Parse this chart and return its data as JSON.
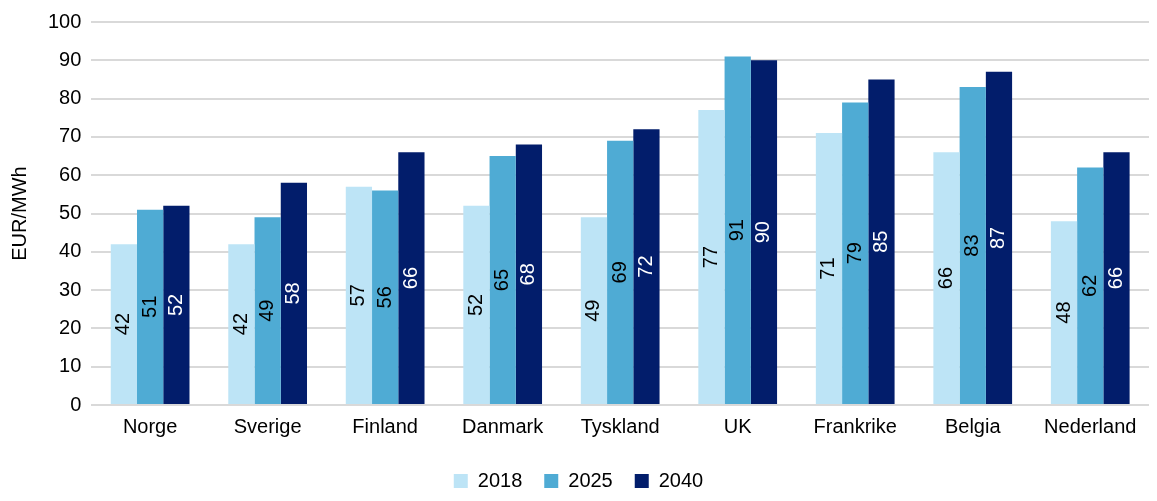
{
  "chart_data": {
    "type": "bar",
    "ylabel": "EUR/MWh",
    "categories": [
      "Norge",
      "Sverige",
      "Finland",
      "Danmark",
      "Tyskland",
      "UK",
      "Frankrike",
      "Belgia",
      "Nederland"
    ],
    "series": [
      {
        "name": "2018",
        "color": "#bde4f6",
        "values": [
          42,
          42,
          57,
          52,
          49,
          77,
          71,
          66,
          48
        ]
      },
      {
        "name": "2025",
        "color": "#4fabd4",
        "values": [
          51,
          49,
          56,
          65,
          69,
          91,
          79,
          83,
          62
        ]
      },
      {
        "name": "2040",
        "color": "#021d6b",
        "values": [
          52,
          58,
          66,
          68,
          72,
          90,
          85,
          87,
          66
        ]
      }
    ],
    "ylim": [
      0,
      100
    ],
    "yticks": [
      0,
      10,
      20,
      30,
      40,
      50,
      60,
      70,
      80,
      90,
      100
    ],
    "grid": "y",
    "legend": "bottom",
    "data_labels": true
  }
}
